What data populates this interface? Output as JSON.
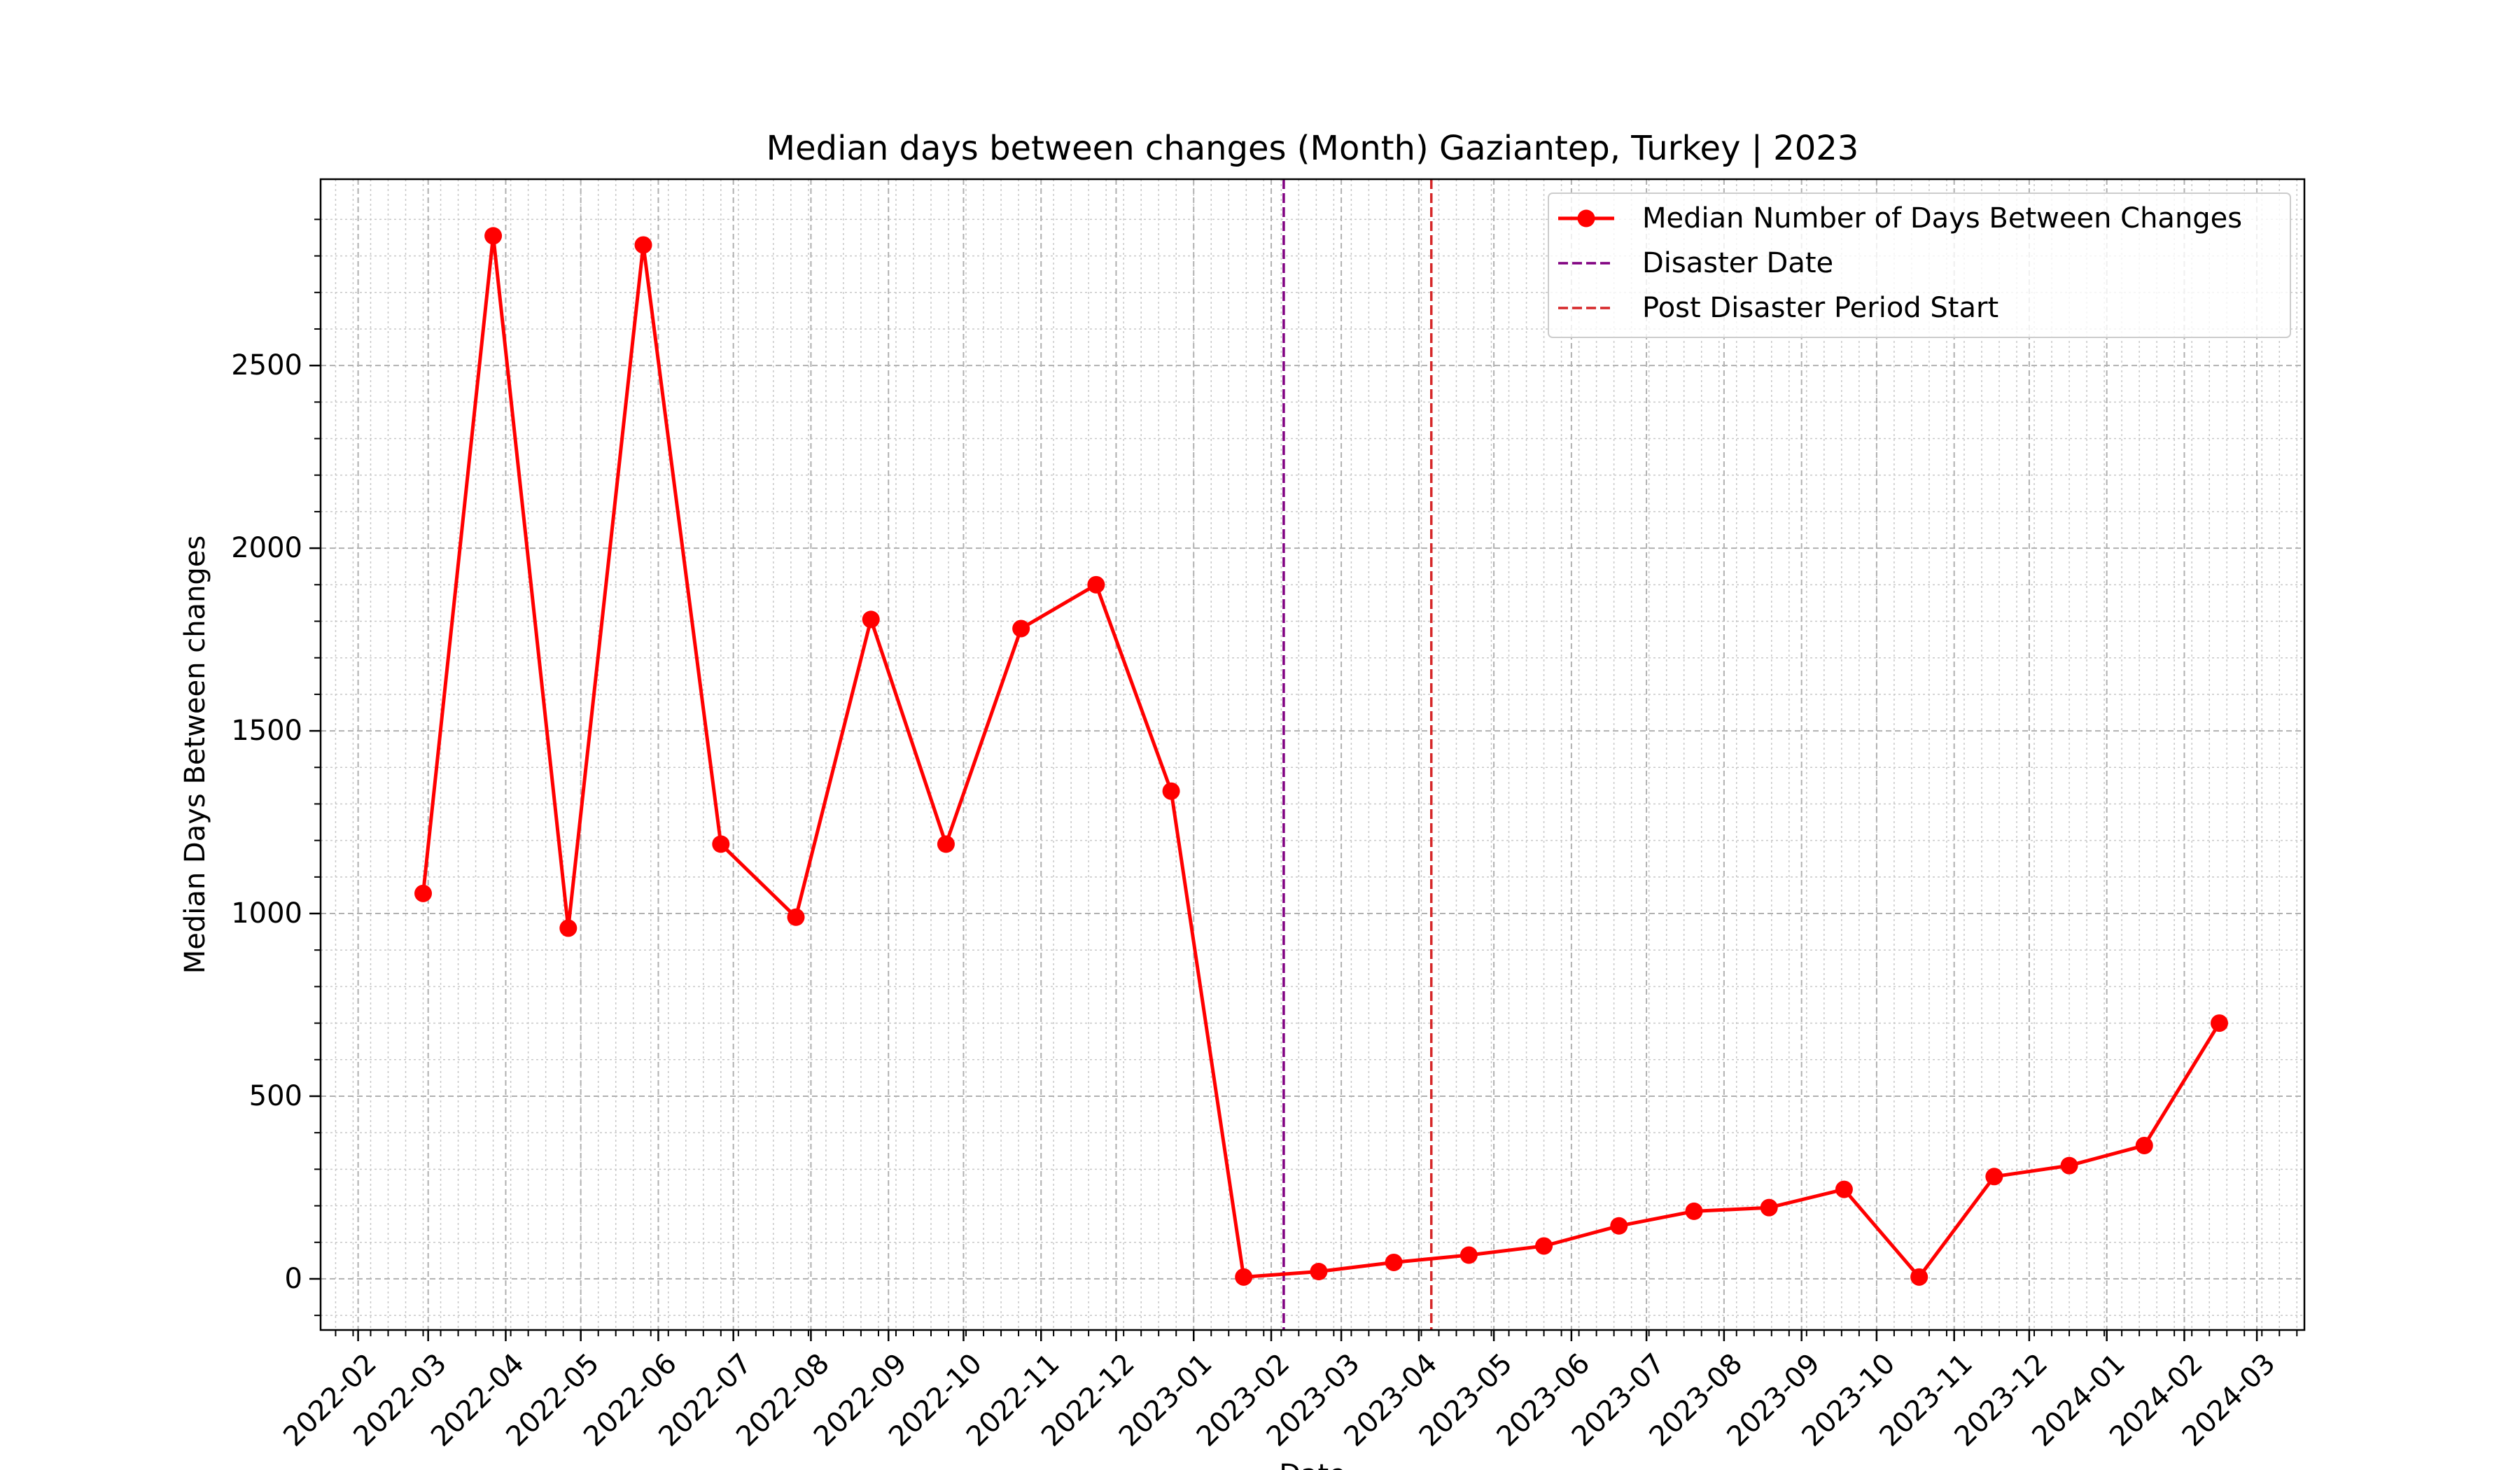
{
  "chart_data": {
    "type": "line",
    "title": "Median days between changes (Month) Gaziantep, Turkey | 2023",
    "xlabel": "Date",
    "ylabel": "Median Days Between changes",
    "ylim": [
      -140,
      3010
    ],
    "xlim": [
      "2022-01-17",
      "2024-03-20"
    ],
    "yticks": [
      0,
      500,
      1000,
      1500,
      2000,
      2500
    ],
    "xticks": [
      "2022-02",
      "2022-03",
      "2022-04",
      "2022-05",
      "2022-06",
      "2022-07",
      "2022-08",
      "2022-09",
      "2022-10",
      "2022-11",
      "2022-12",
      "2023-01",
      "2023-02",
      "2023-03",
      "2023-04",
      "2023-05",
      "2023-06",
      "2023-07",
      "2023-08",
      "2023-09",
      "2023-10",
      "2023-11",
      "2023-12",
      "2024-01",
      "2024-02",
      "2024-03"
    ],
    "grid": true,
    "legend_position": "top-right",
    "series": [
      {
        "name": "Median Number of Days Between Changes",
        "color": "#ff0000",
        "marker": "circle",
        "x": [
          "2022-02-27",
          "2022-03-27",
          "2022-04-26",
          "2022-05-26",
          "2022-06-26",
          "2022-07-26",
          "2022-08-25",
          "2022-09-24",
          "2022-10-24",
          "2022-11-23",
          "2022-12-23",
          "2023-01-21",
          "2023-02-20",
          "2023-03-22",
          "2023-04-21",
          "2023-05-21",
          "2023-06-20",
          "2023-07-20",
          "2023-08-19",
          "2023-09-18",
          "2023-10-18",
          "2023-11-17",
          "2023-12-17",
          "2024-01-16",
          "2024-02-15"
        ],
        "y": [
          1055,
          2855,
          960,
          2830,
          1190,
          990,
          1805,
          1190,
          1780,
          1900,
          1335,
          5,
          20,
          45,
          65,
          90,
          145,
          185,
          195,
          245,
          5,
          280,
          310,
          365,
          700
        ]
      }
    ],
    "vlines": [
      {
        "name": "Disaster Date",
        "x": "2023-02-06",
        "color": "#800080",
        "style": "dashed"
      },
      {
        "name": "Post Disaster Period Start",
        "x": "2023-04-06",
        "color": "#d62728",
        "style": "dashed"
      }
    ]
  }
}
